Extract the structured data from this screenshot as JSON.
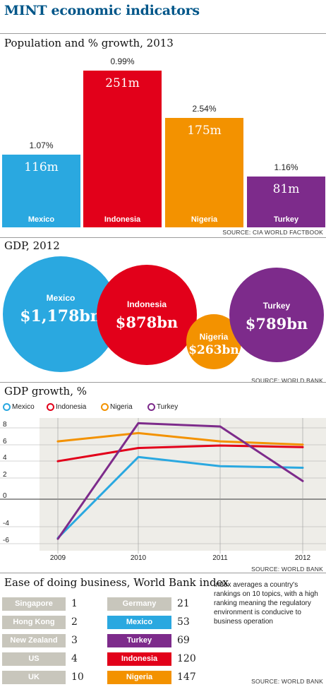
{
  "title": "MINT economic indicators",
  "colors": {
    "mexico": "#2aa8e0",
    "indonesia": "#e2001a",
    "nigeria": "#f39200",
    "turkey": "#7d2b8b",
    "reference": "#c8c6bc"
  },
  "chart_data": [
    {
      "type": "bar",
      "title": "Population and % growth, 2013",
      "categories": [
        "Mexico",
        "Indonesia",
        "Nigeria",
        "Turkey"
      ],
      "values": [
        116,
        251,
        175,
        81
      ],
      "value_labels": [
        "116m",
        "251m",
        "175m",
        "81m"
      ],
      "growth_labels": [
        "1.07%",
        "0.99%",
        "2.54%",
        "1.16%"
      ],
      "source": "SOURCE: CIA WORLD FACTBOOK"
    },
    {
      "type": "bubble",
      "title": "GDP, 2012",
      "categories": [
        "Mexico",
        "Indonesia",
        "Nigeria",
        "Turkey"
      ],
      "values": [
        1178,
        878,
        263,
        789
      ],
      "value_labels": [
        "$1,178bn",
        "$878bn",
        "$263bn",
        "$789bn"
      ],
      "source": "SOURCE: WORLD BANK"
    },
    {
      "type": "line",
      "title": "GDP growth, %",
      "x": [
        2009,
        2010,
        2011,
        2012
      ],
      "x_ticks": [
        "2009",
        "2010",
        "2011",
        "2012"
      ],
      "y_ticks": [
        "8",
        "6",
        "4",
        "2",
        "0",
        "-4",
        "-6"
      ],
      "ylim": [
        -6,
        9
      ],
      "series": [
        {
          "name": "Mexico",
          "values": [
            -4.7,
            5.1,
            4.0,
            3.8
          ]
        },
        {
          "name": "Indonesia",
          "values": [
            4.6,
            6.2,
            6.5,
            6.3
          ]
        },
        {
          "name": "Nigeria",
          "values": [
            7.0,
            8.0,
            7.0,
            6.6
          ]
        },
        {
          "name": "Turkey",
          "values": [
            -4.8,
            9.2,
            8.8,
            2.2
          ]
        }
      ],
      "source": "SOURCE: WORLD BANK"
    },
    {
      "type": "table",
      "title": "Ease of doing business, World Bank index",
      "left": [
        {
          "name": "Singapore",
          "rank": "1"
        },
        {
          "name": "Hong Kong",
          "rank": "2"
        },
        {
          "name": "New Zealand",
          "rank": "3"
        },
        {
          "name": "US",
          "rank": "4"
        },
        {
          "name": "UK",
          "rank": "10"
        }
      ],
      "right": [
        {
          "name": "Germany",
          "rank": "21"
        },
        {
          "name": "Mexico",
          "rank": "53"
        },
        {
          "name": "Turkey",
          "rank": "69"
        },
        {
          "name": "Indonesia",
          "rank": "120"
        },
        {
          "name": "Nigeria",
          "rank": "147"
        }
      ],
      "note": "Index averages a country's rankings on 10 topics, with a high ranking meaning the regulatory environment is conducive to business operation",
      "source": "SOURCE: WORLD BANK"
    }
  ]
}
